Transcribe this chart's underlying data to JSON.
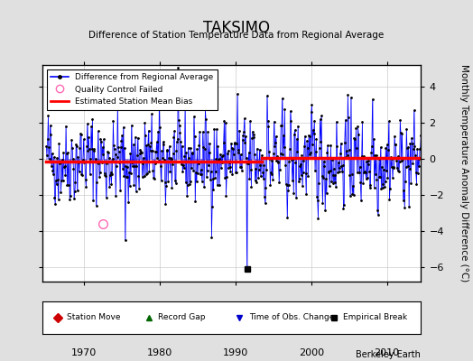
{
  "title": "TAKSIMO",
  "subtitle": "Difference of Station Temperature Data from Regional Average",
  "ylabel": "Monthly Temperature Anomaly Difference (°C)",
  "xlim": [
    1964.5,
    2014.5
  ],
  "ylim": [
    -6.8,
    5.2
  ],
  "yticks": [
    -6,
    -4,
    -2,
    0,
    2,
    4
  ],
  "xticks": [
    1970,
    1980,
    1990,
    2000,
    2010
  ],
  "bg_color": "#e0e0e0",
  "plot_bg_color": "#ffffff",
  "line_color": "#0000ff",
  "mean_bias_color": "#ff0000",
  "mean_bias_value_pre": -0.15,
  "mean_bias_value_post": 0.05,
  "bias_change_year": 1993.5,
  "empirical_break_year": 1991.5,
  "empirical_break_value": -6.1,
  "qc_fail_year": 1972.5,
  "qc_fail_value": -3.6,
  "time_obs_change_year": 1991.5,
  "seed": 42,
  "start_year": 1965,
  "end_year": 2014,
  "footer_text": "Berkeley Earth"
}
